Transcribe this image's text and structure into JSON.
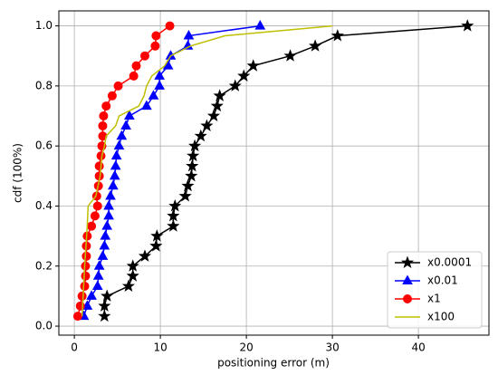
{
  "chart_data": {
    "type": "line",
    "xlabel": "positioning error (m)",
    "ylabel": "cdf (100%)",
    "xlim": [
      -1.8,
      48.2
    ],
    "ylim": [
      -0.03,
      1.05
    ],
    "xticks": [
      0,
      10,
      20,
      30,
      40
    ],
    "yticks": [
      {
        "value": 0,
        "label": "0.0"
      },
      0.2,
      0.4,
      0.6,
      0.8,
      {
        "value": 1,
        "label": "1.0"
      }
    ],
    "grid": true,
    "legend": "lower right",
    "series": [
      {
        "name": "x0.0001",
        "color": "#000000",
        "marker": "star",
        "x": [
          3.5,
          3.5,
          3.8,
          6.3,
          6.8,
          6.8,
          8.2,
          9.5,
          9.6,
          11.5,
          11.5,
          11.7,
          12.9,
          13.2,
          13.6,
          13.7,
          13.8,
          14.0,
          14.7,
          15.4,
          16.2,
          16.6,
          16.9,
          18.7,
          19.7,
          20.8,
          25.1,
          28.0,
          30.6,
          45.7
        ],
        "y": [
          0.033,
          0.067,
          0.1,
          0.133,
          0.167,
          0.2,
          0.233,
          0.267,
          0.3,
          0.333,
          0.367,
          0.4,
          0.433,
          0.467,
          0.5,
          0.533,
          0.567,
          0.6,
          0.633,
          0.667,
          0.7,
          0.733,
          0.767,
          0.8,
          0.833,
          0.867,
          0.9,
          0.933,
          0.967,
          1.0
        ]
      },
      {
        "name": "x0.01",
        "color": "#0000ff",
        "marker": "triangle",
        "x": [
          1.1,
          1.5,
          2.0,
          2.7,
          2.8,
          2.9,
          3.3,
          3.5,
          3.6,
          3.8,
          4.0,
          4.0,
          4.2,
          4.5,
          4.7,
          4.8,
          4.9,
          5.2,
          5.5,
          6.0,
          6.4,
          8.4,
          9.2,
          9.9,
          9.9,
          10.9,
          11.2,
          13.2,
          13.3,
          21.6
        ],
        "y": [
          0.033,
          0.067,
          0.1,
          0.133,
          0.167,
          0.2,
          0.233,
          0.267,
          0.3,
          0.333,
          0.367,
          0.4,
          0.433,
          0.467,
          0.5,
          0.533,
          0.567,
          0.6,
          0.633,
          0.667,
          0.7,
          0.733,
          0.767,
          0.8,
          0.833,
          0.867,
          0.9,
          0.933,
          0.967,
          1.0
        ]
      },
      {
        "name": "x1",
        "color": "#ff0000",
        "marker": "circle",
        "x": [
          0.4,
          0.7,
          0.9,
          1.2,
          1.3,
          1.3,
          1.4,
          1.4,
          1.5,
          2.0,
          2.4,
          2.7,
          2.6,
          2.8,
          2.9,
          2.9,
          3.1,
          3.2,
          3.3,
          3.3,
          3.4,
          3.7,
          4.4,
          5.1,
          6.9,
          7.2,
          8.2,
          9.4,
          9.5,
          11.1
        ],
        "y": [
          0.033,
          0.067,
          0.1,
          0.133,
          0.167,
          0.2,
          0.233,
          0.267,
          0.3,
          0.333,
          0.367,
          0.4,
          0.433,
          0.467,
          0.5,
          0.533,
          0.567,
          0.6,
          0.633,
          0.667,
          0.7,
          0.733,
          0.767,
          0.8,
          0.833,
          0.867,
          0.9,
          0.933,
          0.967,
          1.0
        ]
      },
      {
        "name": "x100",
        "color": "#bfbf00",
        "marker": "none",
        "x": [
          0.9,
          1.2,
          1.5,
          1.6,
          2.5,
          3.0,
          3.2,
          3.5,
          3.7,
          4.8,
          5.2,
          7.5,
          8.1,
          8.4,
          9.0,
          10.5,
          11.2,
          13.5,
          17.5,
          30.0
        ],
        "y": [
          0.033,
          0.2,
          0.333,
          0.4,
          0.433,
          0.5,
          0.567,
          0.6,
          0.633,
          0.667,
          0.7,
          0.733,
          0.767,
          0.8,
          0.833,
          0.867,
          0.9,
          0.933,
          0.967,
          1.0
        ]
      }
    ]
  }
}
